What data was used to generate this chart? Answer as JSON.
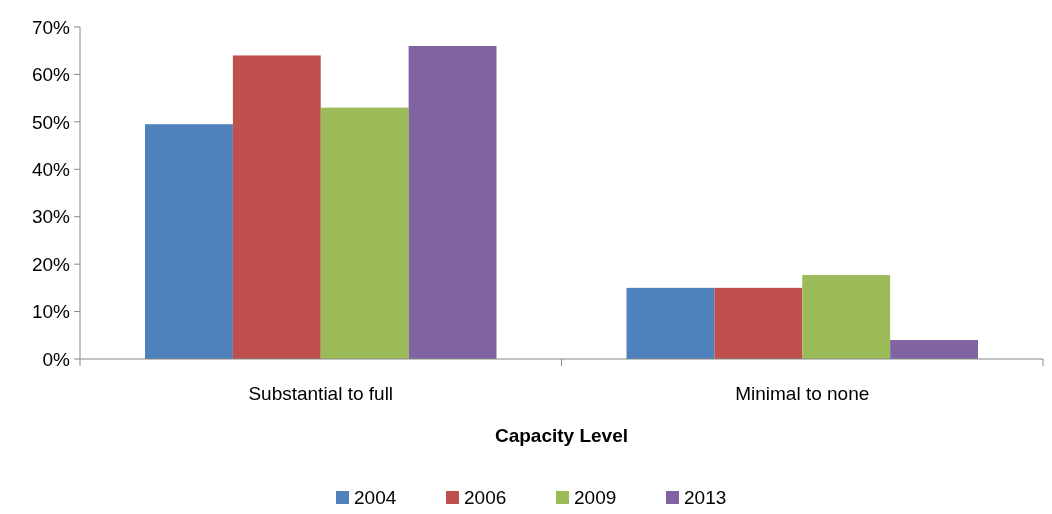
{
  "chart_data": {
    "type": "bar",
    "xlabel": "Capacity Level",
    "categories": [
      "Substantial to full",
      "Minimal to none"
    ],
    "series": [
      {
        "name": "2004",
        "color": "#4f81bd",
        "values": [
          49.5,
          15
        ]
      },
      {
        "name": "2006",
        "color": "#c0504d",
        "values": [
          64,
          15
        ]
      },
      {
        "name": "2009",
        "color": "#9bbb59",
        "values": [
          53,
          17.7
        ]
      },
      {
        "name": "2013",
        "color": "#8064a2",
        "values": [
          66,
          4
        ]
      }
    ],
    "ylim": [
      0,
      70
    ],
    "yticks": [
      {
        "value": 0,
        "label": "0%"
      },
      {
        "value": 10,
        "label": "10%"
      },
      {
        "value": 20,
        "label": "20%"
      },
      {
        "value": 30,
        "label": "30%"
      },
      {
        "value": 40,
        "label": "40%"
      },
      {
        "value": 50,
        "label": "50%"
      },
      {
        "value": 60,
        "label": "60%"
      },
      {
        "value": 70,
        "label": "70%"
      }
    ],
    "grid": false,
    "legend": "bottom"
  }
}
